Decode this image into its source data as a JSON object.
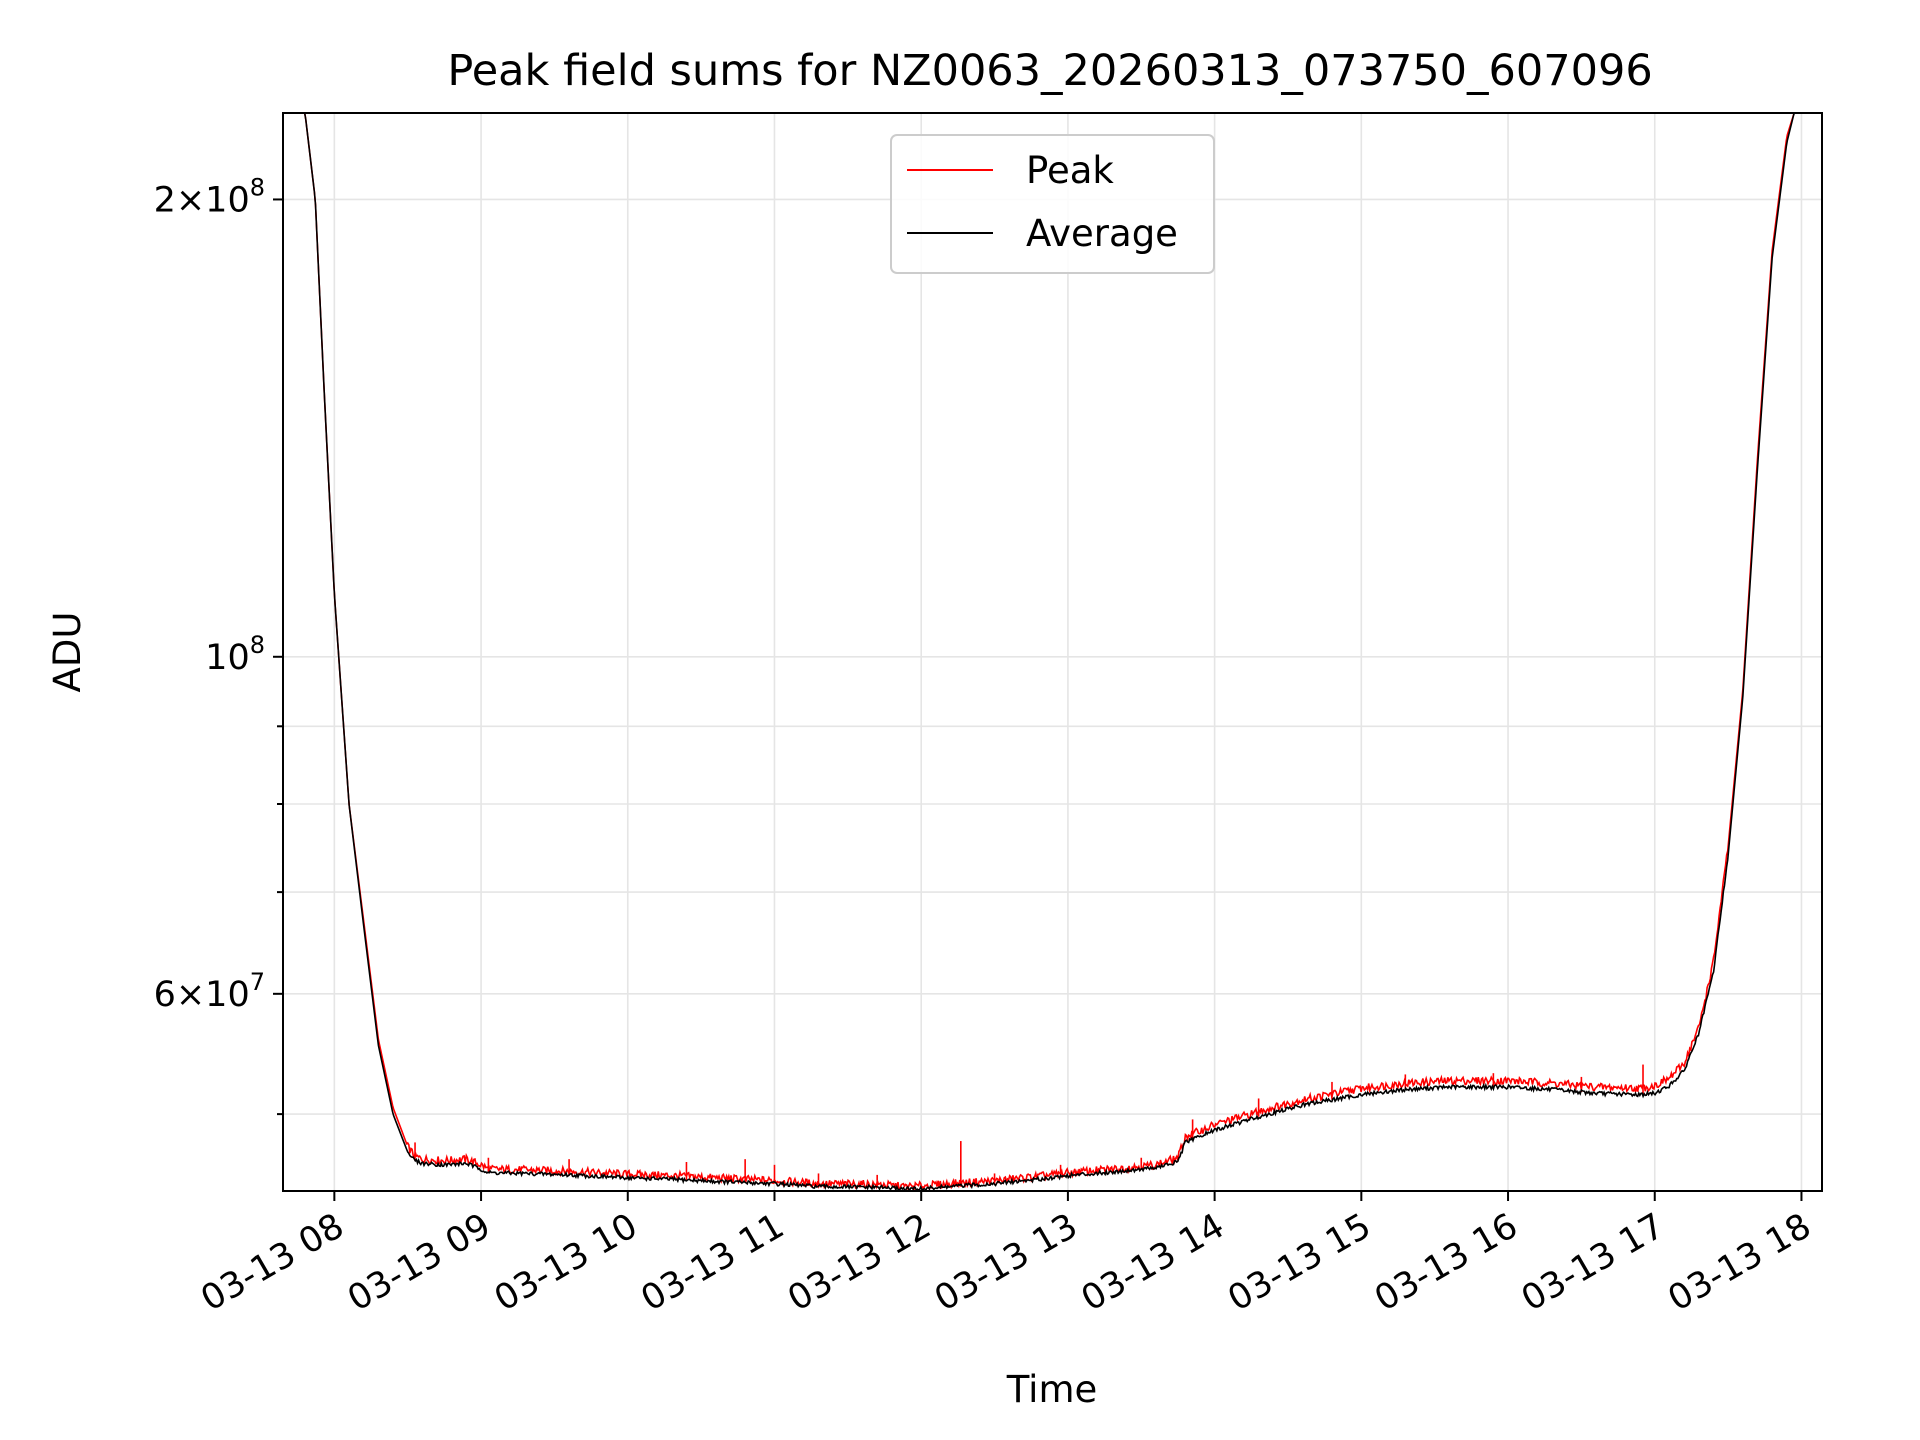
{
  "chart_data": {
    "type": "line",
    "title": "Peak field sums for NZ0063_20260313_073750_607096",
    "xlabel": "Time",
    "ylabel": "ADU",
    "yscale": "log",
    "x_unit": "hours",
    "xlim": [
      7.65,
      18.14
    ],
    "ylim": [
      44500000,
      228000000
    ],
    "grid": true,
    "legend_position": "upper center",
    "x_ticks": [
      {
        "value": 8,
        "label": "03-13 08"
      },
      {
        "value": 9,
        "label": "03-13 09"
      },
      {
        "value": 10,
        "label": "03-13 10"
      },
      {
        "value": 11,
        "label": "03-13 11"
      },
      {
        "value": 12,
        "label": "03-13 12"
      },
      {
        "value": 13,
        "label": "03-13 13"
      },
      {
        "value": 14,
        "label": "03-13 14"
      },
      {
        "value": 15,
        "label": "03-13 15"
      },
      {
        "value": 16,
        "label": "03-13 16"
      },
      {
        "value": 17,
        "label": "03-13 17"
      },
      {
        "value": 18,
        "label": "03-13 18"
      }
    ],
    "y_major_ticks": [
      {
        "value": 200000000,
        "mantissa": "2",
        "base": "10",
        "exp": "8"
      },
      {
        "value": 100000000,
        "mantissa": "",
        "base": "10",
        "exp": "8"
      },
      {
        "value": 60000000,
        "mantissa": "6",
        "base": "10",
        "exp": "7"
      }
    ],
    "y_minor_ticks": [
      50000000,
      70000000,
      80000000,
      90000000
    ],
    "series": [
      {
        "name": "Peak",
        "color": "#ff0000",
        "x": [
          7.65,
          7.8,
          7.87,
          7.93,
          8.0,
          8.1,
          8.2,
          8.3,
          8.4,
          8.5,
          8.55,
          8.6,
          8.75,
          8.9,
          9.0,
          9.05,
          9.3,
          9.6,
          10.0,
          10.3,
          10.6,
          11.0,
          11.3,
          11.7,
          11.9,
          12.0,
          12.2,
          12.5,
          12.8,
          13.0,
          13.3,
          13.6,
          13.75,
          13.8,
          14.0,
          14.3,
          14.6,
          15.0,
          15.3,
          15.6,
          16.0,
          16.3,
          16.6,
          16.9,
          17.0,
          17.1,
          17.2,
          17.3,
          17.4,
          17.5,
          17.6,
          17.7,
          17.8,
          17.9,
          17.95,
          18.0
        ],
        "y": [
          228000000,
          228000000,
          200000000,
          150000000,
          110000000,
          80000000,
          67000000,
          56000000,
          50500000,
          47600000,
          46900000,
          46700000,
          46600000,
          46700000,
          46300000,
          46000000,
          45950000,
          45850000,
          45650000,
          45550000,
          45400000,
          45200000,
          45000000,
          44950000,
          44800000,
          44850000,
          45000000,
          45200000,
          45500000,
          45750000,
          46000000,
          46300000,
          46800000,
          48300000,
          49200000,
          50200000,
          51100000,
          52000000,
          52400000,
          52600000,
          52600000,
          52400000,
          52100000,
          52000000,
          52200000,
          52800000,
          54000000,
          57000000,
          63000000,
          75000000,
          95000000,
          135000000,
          185000000,
          220000000,
          228000000,
          228000000
        ],
        "spikes": [
          {
            "x": 8.55,
            "y": 47900000
          },
          {
            "x": 9.05,
            "y": 46800000
          },
          {
            "x": 9.6,
            "y": 46700000
          },
          {
            "x": 10.4,
            "y": 46500000
          },
          {
            "x": 10.8,
            "y": 46700000
          },
          {
            "x": 11.0,
            "y": 46300000
          },
          {
            "x": 11.3,
            "y": 45700000
          },
          {
            "x": 11.7,
            "y": 45600000
          },
          {
            "x": 12.27,
            "y": 48000000
          },
          {
            "x": 12.5,
            "y": 45700000
          },
          {
            "x": 12.95,
            "y": 46300000
          },
          {
            "x": 13.5,
            "y": 46800000
          },
          {
            "x": 13.85,
            "y": 49600000
          },
          {
            "x": 14.3,
            "y": 51200000
          },
          {
            "x": 14.8,
            "y": 52500000
          },
          {
            "x": 15.3,
            "y": 53100000
          },
          {
            "x": 15.9,
            "y": 53200000
          },
          {
            "x": 16.5,
            "y": 52900000
          },
          {
            "x": 16.92,
            "y": 53900000
          }
        ]
      },
      {
        "name": "Average",
        "color": "#000000",
        "x": [
          7.65,
          7.8,
          7.87,
          7.93,
          8.0,
          8.1,
          8.2,
          8.3,
          8.4,
          8.5,
          8.55,
          8.6,
          8.75,
          8.9,
          9.0,
          9.05,
          9.3,
          9.6,
          10.0,
          10.3,
          10.6,
          11.0,
          11.3,
          11.7,
          11.9,
          12.0,
          12.2,
          12.5,
          12.8,
          13.0,
          13.3,
          13.6,
          13.75,
          13.8,
          14.0,
          14.3,
          14.6,
          15.0,
          15.3,
          15.6,
          16.0,
          16.3,
          16.6,
          16.9,
          17.0,
          17.1,
          17.2,
          17.3,
          17.4,
          17.5,
          17.6,
          17.7,
          17.8,
          17.9,
          17.95,
          18.0
        ],
        "y": [
          228000000,
          228000000,
          200000000,
          150000000,
          110000000,
          80000000,
          66500000,
          55500000,
          50000000,
          47200000,
          46600000,
          46400000,
          46300000,
          46400000,
          46000000,
          45750000,
          45700000,
          45600000,
          45400000,
          45300000,
          45150000,
          45000000,
          44800000,
          44750000,
          44650000,
          44650000,
          44800000,
          45000000,
          45300000,
          45550000,
          45800000,
          46100000,
          46500000,
          47900000,
          48800000,
          49800000,
          50700000,
          51500000,
          51900000,
          52100000,
          52100000,
          51900000,
          51600000,
          51500000,
          51600000,
          52200000,
          53400000,
          56500000,
          62000000,
          74000000,
          94000000,
          133000000,
          183000000,
          218000000,
          228000000,
          228000000
        ]
      }
    ]
  }
}
